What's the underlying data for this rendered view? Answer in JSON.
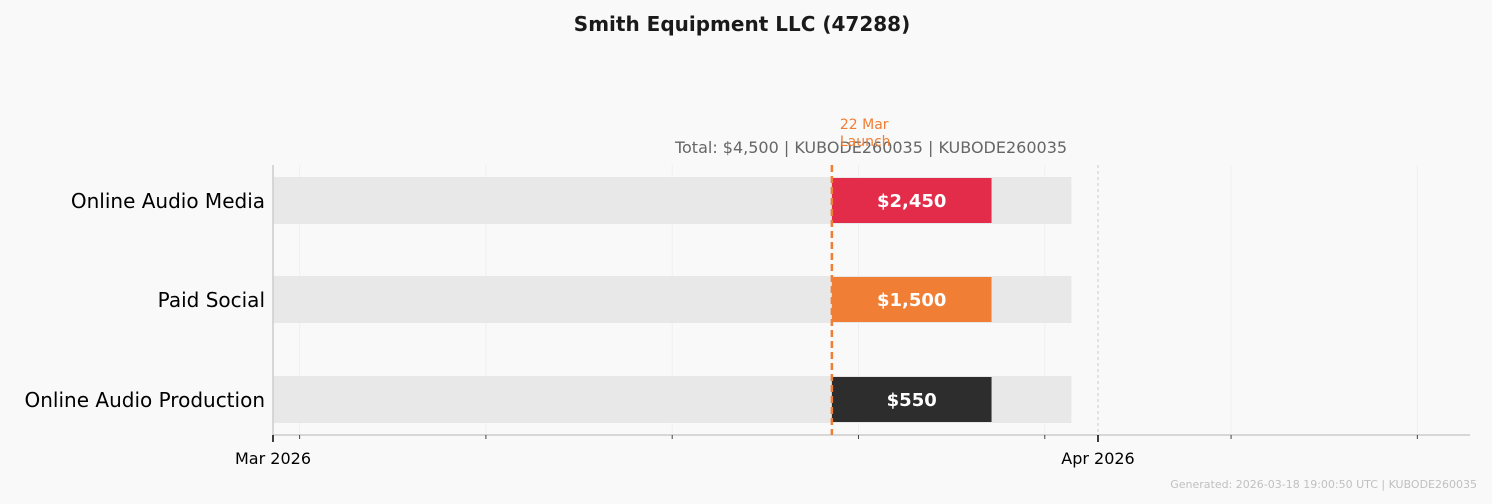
{
  "chart_data": {
    "type": "bar",
    "orientation": "horizontal-timeline",
    "title": "Smith Equipment LLC (47288)",
    "subtitle": "Total: $4,500  |  KUBODE260035  |  KUBODE260035",
    "categories": [
      "Online Audio Media",
      "Paid Social",
      "Online Audio Production"
    ],
    "bars": [
      {
        "category": "Online Audio Media",
        "label": "$2,450",
        "value": 2450,
        "start": "2026-03-22",
        "end": "2026-03-28",
        "color": "#e32b4a"
      },
      {
        "category": "Paid Social",
        "label": "$1,500",
        "value": 1500,
        "start": "2026-03-22",
        "end": "2026-03-28",
        "color": "#f07e35"
      },
      {
        "category": "Online Audio Production",
        "label": "$550",
        "value": 550,
        "start": "2026-03-22",
        "end": "2026-03-28",
        "color": "#2d2d2d"
      }
    ],
    "background_span": {
      "start": "2026-03-01",
      "end": "2026-03-31",
      "color": "#e8e8e8"
    },
    "x_ticks": [
      {
        "date": "2026-03-01",
        "label": "Mar 2026"
      },
      {
        "date": "2026-04-01",
        "label": "Apr 2026"
      }
    ],
    "xlim": [
      "2026-03-01",
      "2026-04-15"
    ],
    "annotation": {
      "date": "2026-03-22",
      "line1": "22 Mar",
      "line2": "Launch",
      "color": "#f07e35"
    },
    "grid": true,
    "footer": "Generated: 2026-03-18 19:00:50 UTC  |  KUBODE260035"
  }
}
